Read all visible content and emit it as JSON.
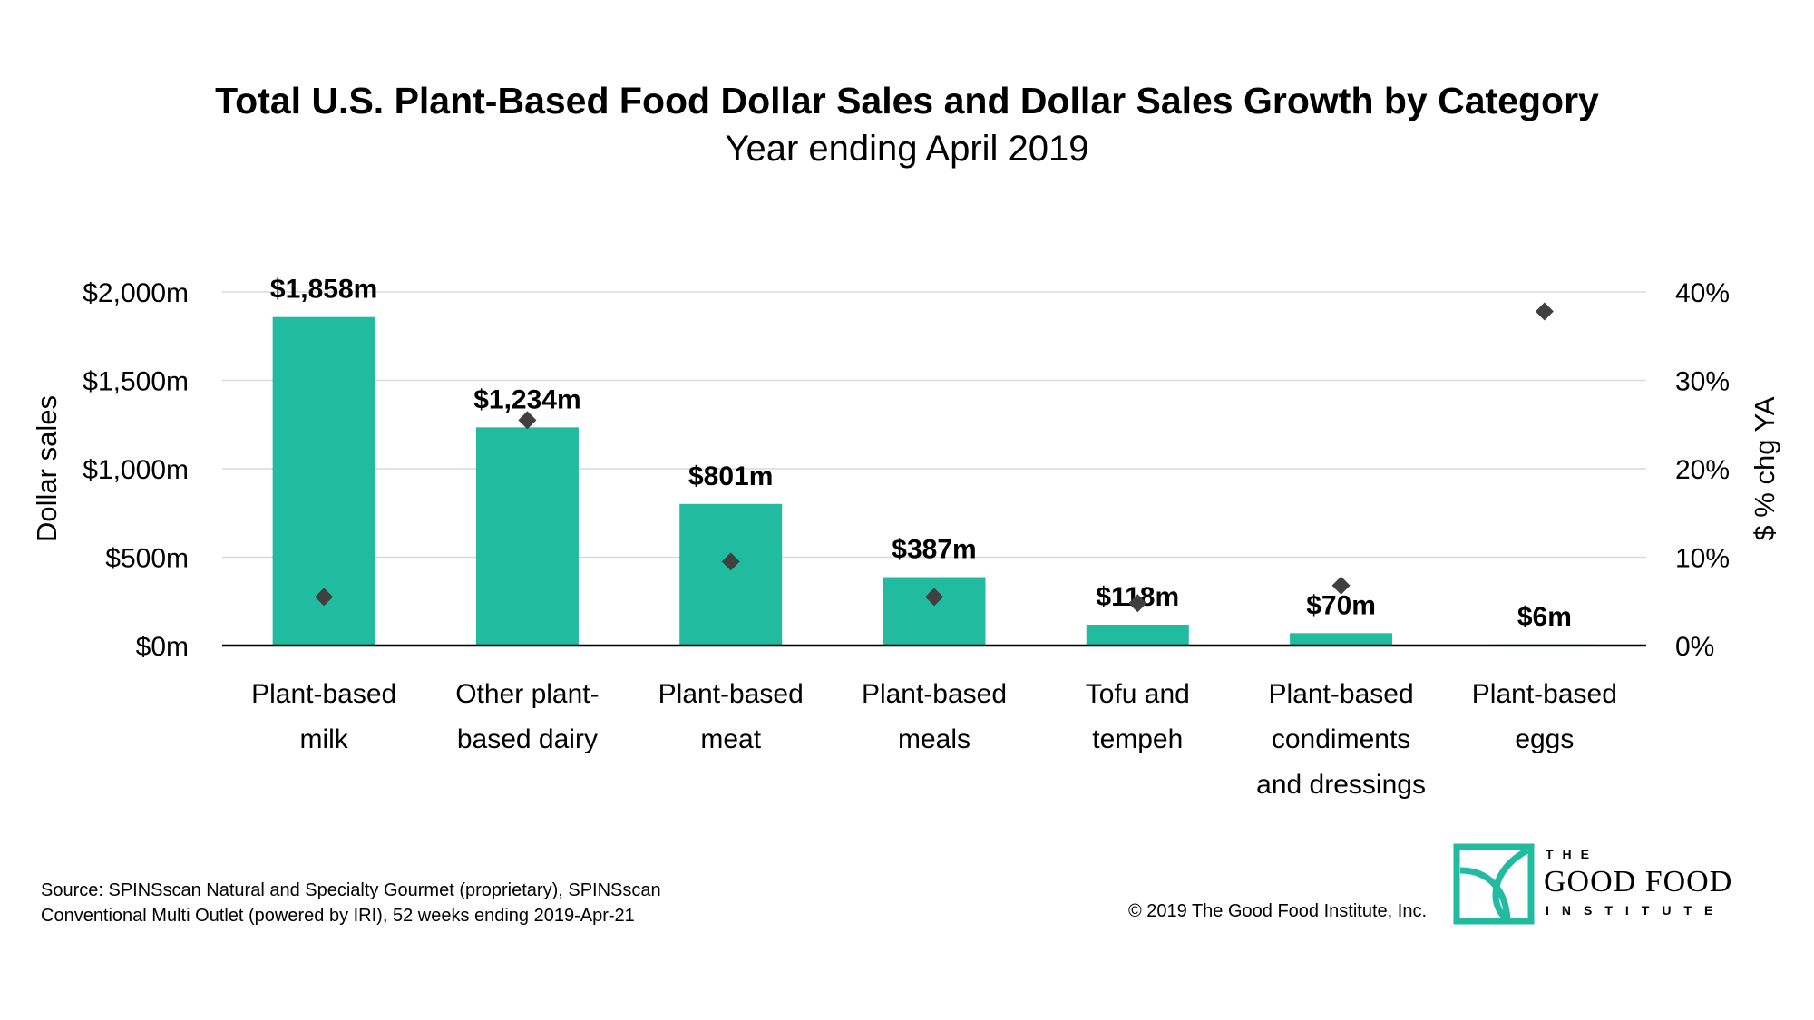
{
  "chart_data": {
    "type": "bar",
    "title": "Total U.S. Plant-Based Food Dollar Sales and Dollar Sales Growth by Category",
    "subtitle": "Year ending April 2019",
    "categories": [
      [
        "Plant-based",
        "milk"
      ],
      [
        "Other plant-",
        "based dairy"
      ],
      [
        "Plant-based",
        "meat"
      ],
      [
        "Plant-based",
        "meals"
      ],
      [
        "Tofu and",
        "tempeh"
      ],
      [
        "Plant-based",
        "condiments",
        "and dressings"
      ],
      [
        "Plant-based",
        "eggs"
      ]
    ],
    "series": [
      {
        "type": "bar",
        "axis": "left",
        "color": "#21bba0",
        "values": [
          1858,
          1234,
          801,
          387,
          118,
          70,
          6
        ],
        "labels": [
          "$1,858m",
          "$1,234m",
          "$801m",
          "$387m",
          "$118m",
          "$70m",
          "$6m"
        ]
      },
      {
        "type": "scatter",
        "axis": "right",
        "color": "#404040",
        "values": [
          5.5,
          25.5,
          9.5,
          5.5,
          4.8,
          6.8,
          37.8
        ]
      }
    ],
    "y_left": {
      "label": "Dollar sales",
      "min": 0,
      "max": 2000,
      "ticks": [
        0,
        500,
        1000,
        1500,
        2000
      ],
      "tick_labels": [
        "$0m",
        "$500m",
        "$1,000m",
        "$1,500m",
        "$2,000m"
      ]
    },
    "y_right": {
      "label": "$ % chg YA",
      "min": 0,
      "max": 40,
      "ticks": [
        0,
        10,
        20,
        30,
        40
      ],
      "tick_labels": [
        "0%",
        "10%",
        "20%",
        "30%",
        "40%"
      ]
    },
    "grid": true,
    "legend": "none"
  },
  "footer": {
    "source_line1": "Source: SPINSscan Natural and Specialty Gourmet (proprietary), SPINSscan",
    "source_line2": "Conventional Multi Outlet (powered by IRI), 52 weeks ending 2019-Apr-21",
    "copyright": "© 2019 The Good Food Institute, Inc."
  },
  "logo": {
    "top": "THE",
    "middle": "GOOD FOOD",
    "bottom": "INSTITUTE",
    "color": "#21bba0"
  }
}
